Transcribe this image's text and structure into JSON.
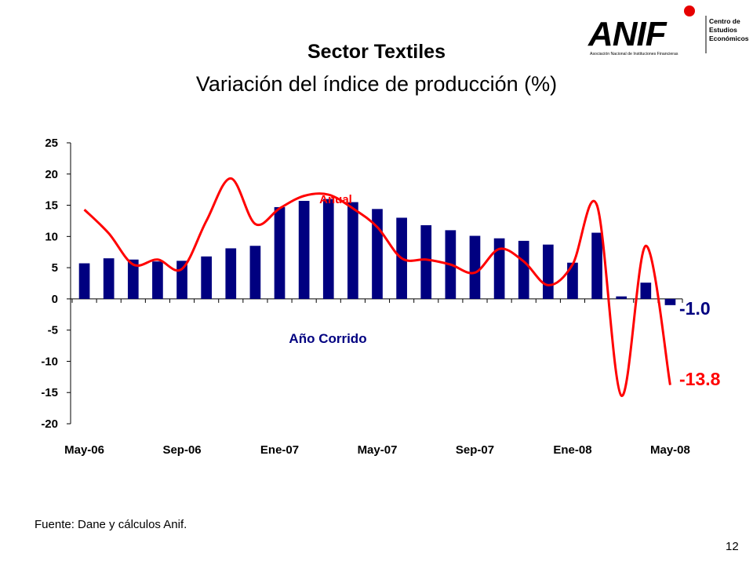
{
  "title": "Sector Textiles",
  "subtitle": "Variación del índice de producción (%)",
  "logo": {
    "text": "ANIF",
    "caption": "Asociación Nacional de Instituciones Financieras",
    "center_label": [
      "Centro de",
      "Estudios",
      "Económicos"
    ],
    "dot_color": "#e60000"
  },
  "source": "Fuente: Dane y cálculos Anif.",
  "page_number": "12",
  "chart_data": {
    "type": "bar+line",
    "title": "",
    "xlabel": "",
    "ylabel": "",
    "ylim": [
      -20,
      25
    ],
    "yticks": [
      25,
      20,
      15,
      10,
      5,
      0,
      -5,
      -10,
      -15,
      -20
    ],
    "categories": [
      "May-06",
      "Jun-06",
      "Jul-06",
      "Ago-06",
      "Sep-06",
      "Oct-06",
      "Nov-06",
      "Dic-06",
      "Ene-07",
      "Feb-07",
      "Mar-07",
      "Abr-07",
      "May-07",
      "Jun-07",
      "Jul-07",
      "Ago-07",
      "Sep-07",
      "Oct-07",
      "Nov-07",
      "Dic-07",
      "Ene-08",
      "Feb-08",
      "Mar-08",
      "Abr-08",
      "May-08"
    ],
    "xtick_labels": [
      {
        "index": 0,
        "label": "May-06"
      },
      {
        "index": 4,
        "label": "Sep-06"
      },
      {
        "index": 8,
        "label": "Ene-07"
      },
      {
        "index": 12,
        "label": "May-07"
      },
      {
        "index": 16,
        "label": "Sep-07"
      },
      {
        "index": 20,
        "label": "Ene-08"
      },
      {
        "index": 24,
        "label": "May-08"
      }
    ],
    "series": [
      {
        "name": "Año Corrido",
        "kind": "bar",
        "color": "#000080",
        "values": [
          5.7,
          6.5,
          6.3,
          6.0,
          6.1,
          6.8,
          8.1,
          8.5,
          14.7,
          15.7,
          16.0,
          15.5,
          14.4,
          13.0,
          11.8,
          11.0,
          10.1,
          9.7,
          9.3,
          8.7,
          5.8,
          10.6,
          0.4,
          2.6,
          -1.0
        ],
        "end_label": "-1.0"
      },
      {
        "name": "Anual",
        "kind": "line",
        "color": "#ff0000",
        "values": [
          14.3,
          10.5,
          5.5,
          6.3,
          4.8,
          12.5,
          19.3,
          12.0,
          14.5,
          16.5,
          16.7,
          14.5,
          11.5,
          6.5,
          6.3,
          5.5,
          4.2,
          8.0,
          6.0,
          2.2,
          5.5,
          15.0,
          -15.5,
          8.5,
          -13.8
        ],
        "end_label": "-13.8"
      }
    ]
  }
}
